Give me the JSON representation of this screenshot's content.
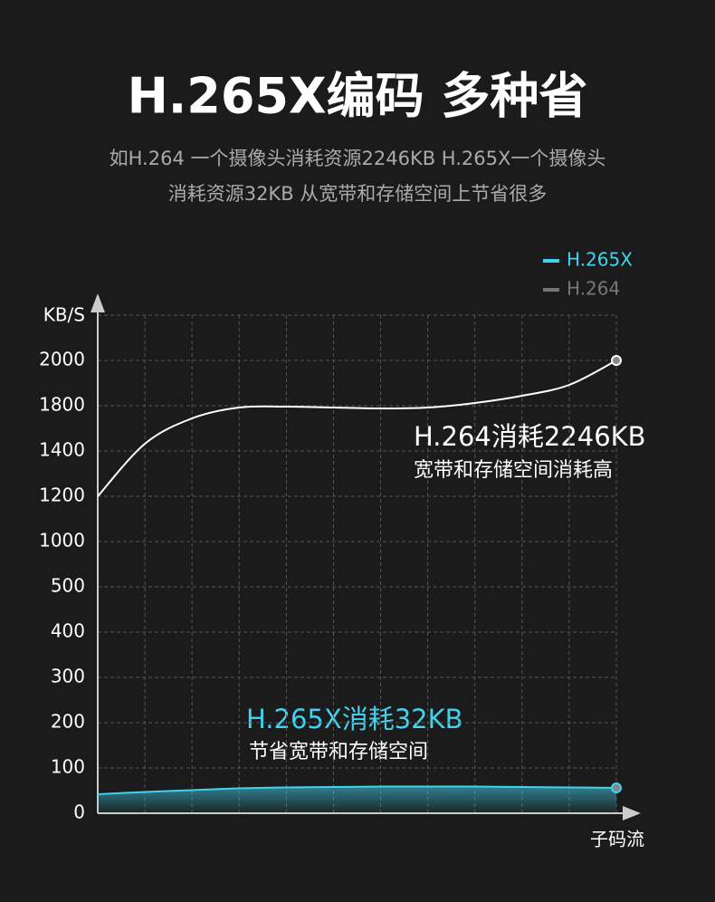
{
  "chart_data": {
    "type": "line",
    "title": "H.265X编码 多种省",
    "subtitle": [
      "如H.264 一个摄像头消耗资源2246KB H.265X一个摄像头",
      "消耗资源32KB 从宽带和存储空间上节省很多"
    ],
    "y_label": "KB/S",
    "x_label": "子码流",
    "x": [
      0,
      1,
      2,
      3,
      4,
      5,
      6,
      7,
      8,
      9,
      10,
      11
    ],
    "xlim": [
      0,
      11
    ],
    "ylim": [
      0,
      2000
    ],
    "yticks": [
      0,
      100,
      200,
      300,
      400,
      500,
      1000,
      1200,
      1400,
      1800,
      2000
    ],
    "grid": true,
    "legend": "top-right",
    "series": [
      {
        "name": "H.265X",
        "color": "#3fd3f0",
        "values": [
          42,
          47,
          51,
          55,
          57,
          58,
          59,
          59,
          59,
          58,
          57,
          56
        ]
      },
      {
        "name": "H.264",
        "color": "#ffffff",
        "values": [
          1200,
          1464,
          1688,
          1784,
          1792,
          1784,
          1776,
          1784,
          1812,
          1844,
          1892,
          2000
        ]
      }
    ],
    "annotations": [
      {
        "text": "H.264消耗2246KB",
        "sub": "宽带和存储空间消耗高"
      },
      {
        "text": "H.265X消耗32KB",
        "sub": "节省宽带和存储空间"
      }
    ]
  }
}
